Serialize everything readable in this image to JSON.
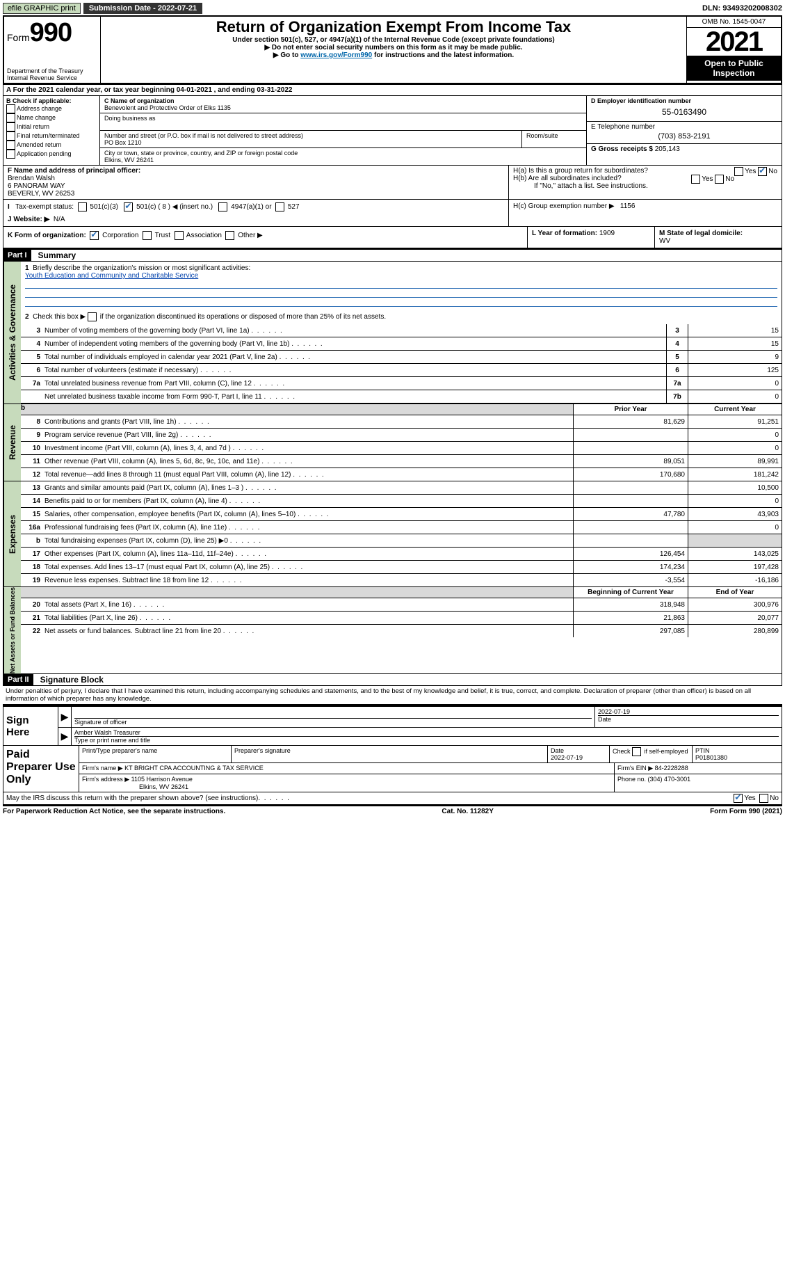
{
  "topbar": {
    "efile": "efile GRAPHIC print",
    "submission": "Submission Date - 2022-07-21",
    "dln": "DLN: 93493202008302"
  },
  "header": {
    "form_label": "Form",
    "form_number": "990",
    "dept": "Department of the Treasury",
    "irs": "Internal Revenue Service",
    "title": "Return of Organization Exempt From Income Tax",
    "subtitle": "Under section 501(c), 527, or 4947(a)(1) of the Internal Revenue Code (except private foundations)",
    "note1": "▶ Do not enter social security numbers on this form as it may be made public.",
    "note2_pre": "▶ Go to ",
    "note2_link": "www.irs.gov/Form990",
    "note2_post": " for instructions and the latest information.",
    "omb": "OMB No. 1545-0047",
    "year": "2021",
    "open": "Open to Public Inspection"
  },
  "tax_year": {
    "prefix_a": "A For the 2021 calendar year, or tax year beginning ",
    "begin": "04-01-2021",
    "mid": " , and ending ",
    "end": "03-31-2022"
  },
  "section_b": {
    "label": "B Check if applicable:",
    "items": [
      "Address change",
      "Name change",
      "Initial return",
      "Final return/terminated",
      "Amended return",
      "Application pending"
    ]
  },
  "section_c": {
    "name_label": "C Name of organization",
    "name": "Benevolent and Protective Order of Elks 1135",
    "dba_label": "Doing business as",
    "addr_label": "Number and street (or P.O. box if mail is not delivered to street address)",
    "addr": "PO Box 1210",
    "room_label": "Room/suite",
    "city_label": "City or town, state or province, country, and ZIP or foreign postal code",
    "city": "Elkins, WV  26241"
  },
  "section_d": {
    "ein_label": "D Employer identification number",
    "ein": "55-0163490",
    "e_label": "E Telephone number",
    "phone": "(703) 853-2191",
    "g_label": "G Gross receipts $ ",
    "gross": "205,143"
  },
  "section_f": {
    "label": "F Name and address of principal officer:",
    "name": "Brendan Walsh",
    "addr1": "6 PANORAM WAY",
    "addr2": "BEVERLY, WV  26253"
  },
  "section_h": {
    "ha": "H(a)  Is this a group return for subordinates?",
    "hb": "H(b)  Are all subordinates included?",
    "hb_note": "If \"No,\" attach a list. See instructions.",
    "hc": "H(c)  Group exemption number ▶",
    "hc_val": "1156",
    "yes": "Yes",
    "no": "No"
  },
  "section_i": {
    "label": "Tax-exempt status:",
    "opt1": "501(c)(3)",
    "opt2_pre": "501(c) ( ",
    "opt2_val": "8",
    "opt2_post": " ) ◀ (insert no.)",
    "opt3": "4947(a)(1) or",
    "opt4": "527"
  },
  "section_j": {
    "label": "J   Website: ▶",
    "value": "N/A"
  },
  "section_k": {
    "label": "K Form of organization:",
    "opts": [
      "Corporation",
      "Trust",
      "Association",
      "Other ▶"
    ],
    "l_label": "L Year of formation: ",
    "l_val": "1909",
    "m_label": "M State of legal domicile:",
    "m_val": "WV"
  },
  "part1": {
    "header": "Part I",
    "title": "Summary",
    "line1": "Briefly describe the organization's mission or most significant activities:",
    "mission": "Youth Education and Community and Charitable Service",
    "line2": "Check this box ▶        if the organization discontinued its operations or disposed of more than 25% of its net assets.",
    "lines_gov": [
      {
        "n": "3",
        "d": "Number of voting members of the governing body (Part VI, line 1a)",
        "box": "3",
        "v": "15"
      },
      {
        "n": "4",
        "d": "Number of independent voting members of the governing body (Part VI, line 1b)",
        "box": "4",
        "v": "15"
      },
      {
        "n": "5",
        "d": "Total number of individuals employed in calendar year 2021 (Part V, line 2a)",
        "box": "5",
        "v": "9"
      },
      {
        "n": "6",
        "d": "Total number of volunteers (estimate if necessary)",
        "box": "6",
        "v": "125"
      },
      {
        "n": "7a",
        "d": "Total unrelated business revenue from Part VIII, column (C), line 12",
        "box": "7a",
        "v": "0"
      },
      {
        "n": "",
        "d": "Net unrelated business taxable income from Form 990-T, Part I, line 11",
        "box": "7b",
        "v": "0"
      }
    ],
    "col_headers": {
      "prior": "Prior Year",
      "current": "Current Year"
    },
    "lines_rev": [
      {
        "n": "8",
        "d": "Contributions and grants (Part VIII, line 1h)",
        "p": "81,629",
        "c": "91,251"
      },
      {
        "n": "9",
        "d": "Program service revenue (Part VIII, line 2g)",
        "p": "",
        "c": "0"
      },
      {
        "n": "10",
        "d": "Investment income (Part VIII, column (A), lines 3, 4, and 7d )",
        "p": "",
        "c": "0"
      },
      {
        "n": "11",
        "d": "Other revenue (Part VIII, column (A), lines 5, 6d, 8c, 9c, 10c, and 11e)",
        "p": "89,051",
        "c": "89,991"
      },
      {
        "n": "12",
        "d": "Total revenue—add lines 8 through 11 (must equal Part VIII, column (A), line 12)",
        "p": "170,680",
        "c": "181,242"
      }
    ],
    "lines_exp": [
      {
        "n": "13",
        "d": "Grants and similar amounts paid (Part IX, column (A), lines 1–3 )",
        "p": "",
        "c": "10,500"
      },
      {
        "n": "14",
        "d": "Benefits paid to or for members (Part IX, column (A), line 4)",
        "p": "",
        "c": "0"
      },
      {
        "n": "15",
        "d": "Salaries, other compensation, employee benefits (Part IX, column (A), lines 5–10)",
        "p": "47,780",
        "c": "43,903"
      },
      {
        "n": "16a",
        "d": "Professional fundraising fees (Part IX, column (A), line 11e)",
        "p": "",
        "c": "0"
      },
      {
        "n": "b",
        "d": "Total fundraising expenses (Part IX, column (D), line 25) ▶0",
        "p": "grey",
        "c": "grey"
      },
      {
        "n": "17",
        "d": "Other expenses (Part IX, column (A), lines 11a–11d, 11f–24e)",
        "p": "126,454",
        "c": "143,025"
      },
      {
        "n": "18",
        "d": "Total expenses. Add lines 13–17 (must equal Part IX, column (A), line 25)",
        "p": "174,234",
        "c": "197,428"
      },
      {
        "n": "19",
        "d": "Revenue less expenses. Subtract line 18 from line 12",
        "p": "-3,554",
        "c": "-16,186"
      }
    ],
    "col_headers2": {
      "prior": "Beginning of Current Year",
      "current": "End of Year"
    },
    "lines_net": [
      {
        "n": "20",
        "d": "Total assets (Part X, line 16)",
        "p": "318,948",
        "c": "300,976"
      },
      {
        "n": "21",
        "d": "Total liabilities (Part X, line 26)",
        "p": "21,863",
        "c": "20,077"
      },
      {
        "n": "22",
        "d": "Net assets or fund balances. Subtract line 21 from line 20",
        "p": "297,085",
        "c": "280,899"
      }
    ],
    "vert_labels": {
      "gov": "Activities & Governance",
      "rev": "Revenue",
      "exp": "Expenses",
      "net": "Net Assets or Fund Balances"
    }
  },
  "part2": {
    "header": "Part II",
    "title": "Signature Block",
    "declare": "Under penalties of perjury, I declare that I have examined this return, including accompanying schedules and statements, and to the best of my knowledge and belief, it is true, correct, and complete. Declaration of preparer (other than officer) is based on all information of which preparer has any knowledge.",
    "sign_here": "Sign Here",
    "sig_officer": "Signature of officer",
    "sig_date": "2022-07-19",
    "date_label": "Date",
    "name_title": "Amber Walsh Treasurer",
    "name_title_label": "Type or print name and title",
    "paid_prep": "Paid Preparer Use Only",
    "prep_name_label": "Print/Type preparer's name",
    "prep_sig_label": "Preparer's signature",
    "prep_date_label": "Date",
    "prep_date": "2022-07-19",
    "check_self": "Check        if self-employed",
    "ptin_label": "PTIN",
    "ptin": "P01801380",
    "firm_name_label": "Firm's name    ▶",
    "firm_name": "KT BRIGHT CPA ACCOUNTING & TAX SERVICE",
    "firm_ein_label": "Firm's EIN ▶",
    "firm_ein": "84-2228288",
    "firm_addr_label": "Firm's address ▶",
    "firm_addr1": "1105 Harrison Avenue",
    "firm_addr2": "Elkins, WV  26241",
    "phone_label": "Phone no. ",
    "phone": "(304) 470-3001",
    "discuss": "May the IRS discuss this return with the preparer shown above? (see instructions)",
    "yes": "Yes",
    "no": "No"
  },
  "footer": {
    "paperwork": "For Paperwork Reduction Act Notice, see the separate instructions.",
    "cat": "Cat. No. 11282Y",
    "form": "Form 990 (2021)"
  }
}
